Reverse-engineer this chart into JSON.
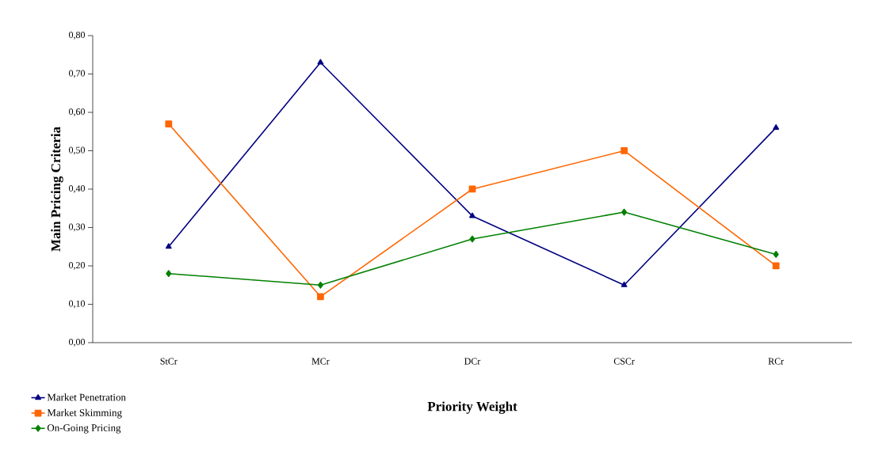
{
  "chart_data": {
    "type": "line",
    "xlabel": "Priority Weight",
    "ylabel": "Main Pricing Criteria",
    "categories": [
      "StCr",
      "MCr",
      "DCr",
      "CSCr",
      "RCr"
    ],
    "series": [
      {
        "name": "Market Penetration",
        "color": "#000080",
        "marker": "triangle",
        "values": [
          0.25,
          0.73,
          0.33,
          0.15,
          0.56
        ]
      },
      {
        "name": "Market Skimming",
        "color": "#ff6600",
        "marker": "square",
        "values": [
          0.57,
          0.12,
          0.4,
          0.5,
          0.2
        ]
      },
      {
        "name": "On-Going Pricing",
        "color": "#008000",
        "marker": "diamond",
        "values": [
          0.18,
          0.15,
          0.27,
          0.34,
          0.23
        ]
      }
    ],
    "ylim": [
      0,
      0.8
    ],
    "yticks": [
      {
        "value": 0,
        "label": "0,00"
      },
      {
        "value": 0.1,
        "label": "0,10"
      },
      {
        "value": 0.2,
        "label": "0,20"
      },
      {
        "value": 0.3,
        "label": "0,30"
      },
      {
        "value": 0.4,
        "label": "0,40"
      },
      {
        "value": 0.5,
        "label": "0,50"
      },
      {
        "value": 0.6,
        "label": "0,60"
      },
      {
        "value": 0.7,
        "label": "0,70"
      },
      {
        "value": 0.8,
        "label": "0,80"
      }
    ],
    "grid": false,
    "legend": "bottom left",
    "line_style": "solid"
  }
}
